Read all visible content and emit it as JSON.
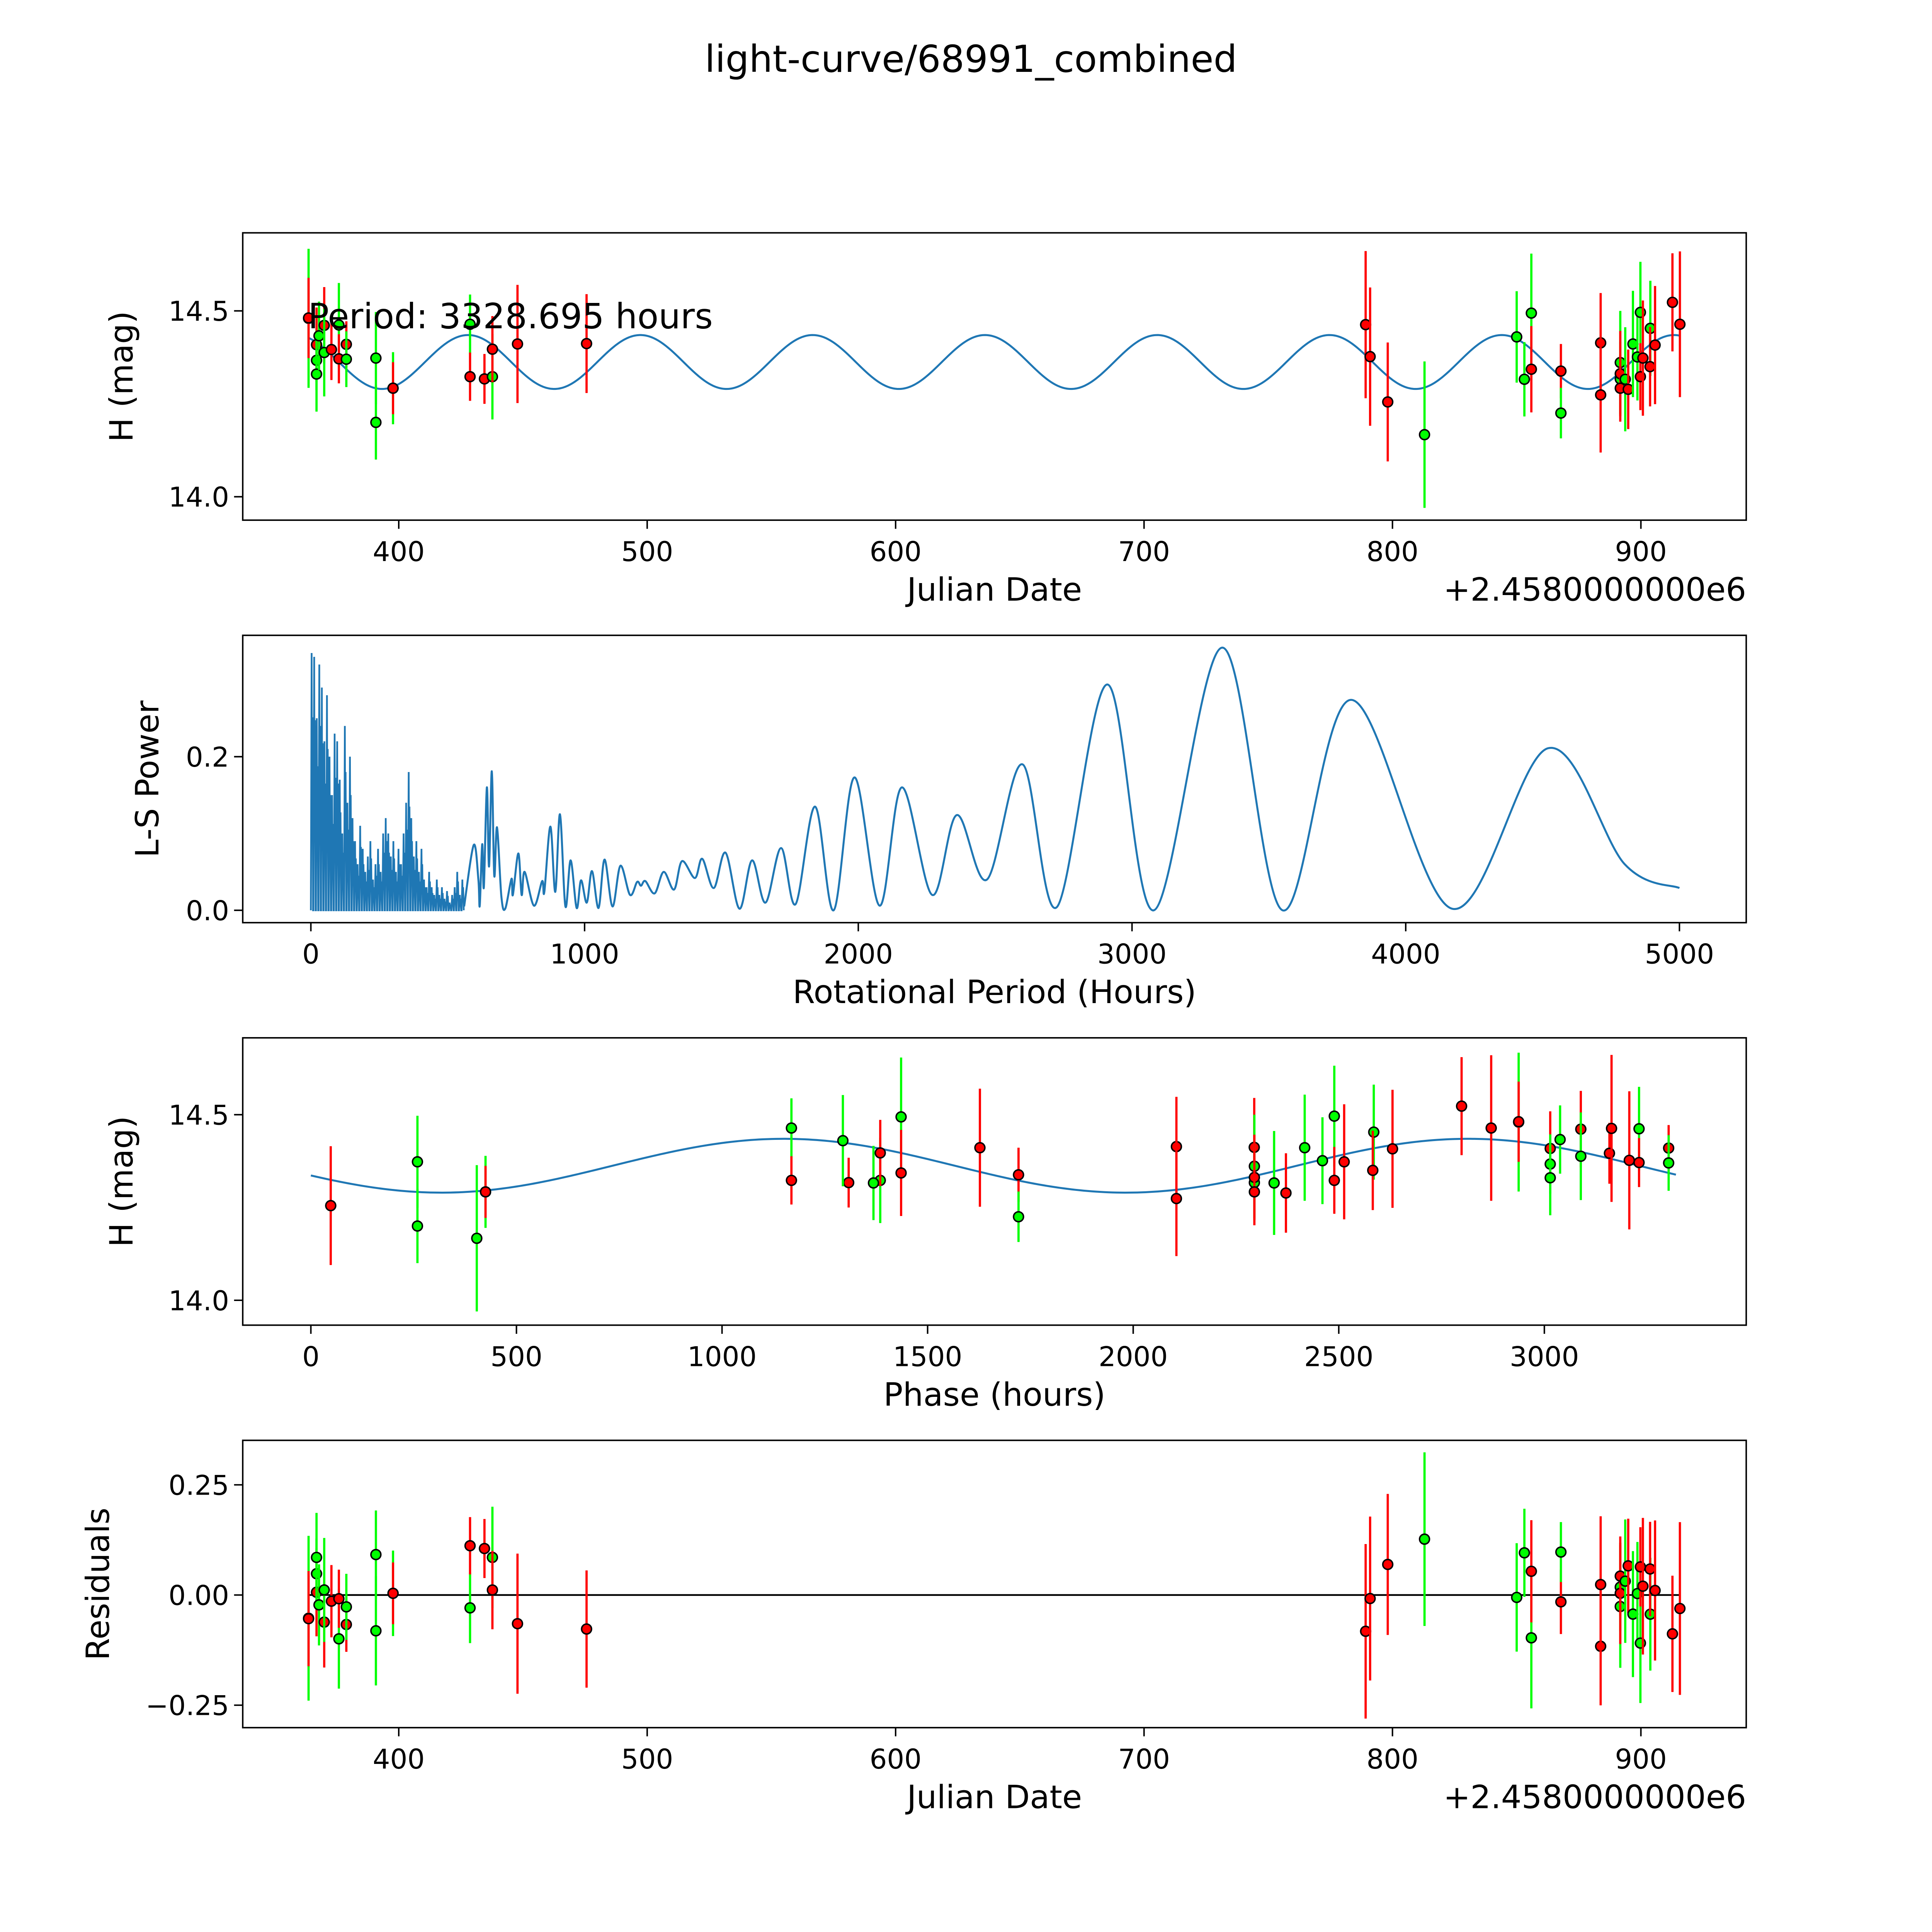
{
  "chart_data": {
    "type": "scatter",
    "title": "light-curve/68991_combined",
    "colors": {
      "red_band": "#ff0000",
      "green_band": "#00ff00",
      "model": "#1f77b4",
      "marker_edge": "#000000"
    },
    "model": {
      "mean_mag": 14.3625,
      "amplitude": 0.0725,
      "period_hours": 3328.695,
      "t0_jd_offset": 380,
      "peak_phase_hours": 1150,
      "harmonic": 2,
      "jd_range": [
        363.5,
        915.8
      ]
    },
    "observations": [
      {
        "jd": 363.7,
        "mag": 14.48,
        "err": 0.187,
        "band": "green"
      },
      {
        "jd": 363.7,
        "mag": 14.481,
        "err": 0.108,
        "band": "red"
      },
      {
        "jd": 366.9,
        "mag": 14.409,
        "err": 0.1,
        "band": "red"
      },
      {
        "jd": 366.9,
        "mag": 14.367,
        "err": 0.08,
        "band": "green"
      },
      {
        "jd": 366.9,
        "mag": 14.33,
        "err": 0.101,
        "band": "green"
      },
      {
        "jd": 367.9,
        "mag": 14.433,
        "err": 0.092,
        "band": "green"
      },
      {
        "jd": 370.0,
        "mag": 14.461,
        "err": 0.103,
        "band": "red"
      },
      {
        "jd": 370.0,
        "mag": 14.388,
        "err": 0.118,
        "band": "green"
      },
      {
        "jd": 372.9,
        "mag": 14.396,
        "err": 0.082,
        "band": "red"
      },
      {
        "jd": 375.9,
        "mag": 14.462,
        "err": 0.113,
        "band": "green"
      },
      {
        "jd": 375.9,
        "mag": 14.371,
        "err": 0.066,
        "band": "red"
      },
      {
        "jd": 378.9,
        "mag": 14.41,
        "err": 0.062,
        "band": "red"
      },
      {
        "jd": 378.9,
        "mag": 14.37,
        "err": 0.075,
        "band": "green"
      },
      {
        "jd": 390.8,
        "mag": 14.373,
        "err": 0.124,
        "band": "green"
      },
      {
        "jd": 390.8,
        "mag": 14.2,
        "err": 0.1,
        "band": "green"
      },
      {
        "jd": 397.7,
        "mag": 14.292,
        "err": 0.097,
        "band": "green"
      },
      {
        "jd": 397.7,
        "mag": 14.292,
        "err": 0.07,
        "band": "red"
      },
      {
        "jd": 428.7,
        "mag": 14.464,
        "err": 0.08,
        "band": "green"
      },
      {
        "jd": 428.7,
        "mag": 14.323,
        "err": 0.065,
        "band": "red"
      },
      {
        "jd": 434.5,
        "mag": 14.317,
        "err": 0.067,
        "band": "red"
      },
      {
        "jd": 437.7,
        "mag": 14.323,
        "err": 0.115,
        "band": "green"
      },
      {
        "jd": 437.7,
        "mag": 14.397,
        "err": 0.089,
        "band": "red"
      },
      {
        "jd": 447.8,
        "mag": 14.411,
        "err": 0.159,
        "band": "red"
      },
      {
        "jd": 475.6,
        "mag": 14.412,
        "err": 0.133,
        "band": "red"
      },
      {
        "jd": 789.2,
        "mag": 14.463,
        "err": 0.198,
        "band": "red"
      },
      {
        "jd": 791.0,
        "mag": 14.377,
        "err": 0.186,
        "band": "red"
      },
      {
        "jd": 798.1,
        "mag": 14.255,
        "err": 0.16,
        "band": "red"
      },
      {
        "jd": 812.9,
        "mag": 14.167,
        "err": 0.197,
        "band": "green"
      },
      {
        "jd": 850.0,
        "mag": 14.43,
        "err": 0.123,
        "band": "green"
      },
      {
        "jd": 853.1,
        "mag": 14.316,
        "err": 0.1,
        "band": "green"
      },
      {
        "jd": 855.9,
        "mag": 14.494,
        "err": 0.16,
        "band": "green"
      },
      {
        "jd": 855.9,
        "mag": 14.343,
        "err": 0.116,
        "band": "red"
      },
      {
        "jd": 867.8,
        "mag": 14.338,
        "err": 0.073,
        "band": "red"
      },
      {
        "jd": 867.8,
        "mag": 14.225,
        "err": 0.068,
        "band": "green"
      },
      {
        "jd": 883.8,
        "mag": 14.414,
        "err": 0.134,
        "band": "red"
      },
      {
        "jd": 883.8,
        "mag": 14.274,
        "err": 0.155,
        "band": "red"
      },
      {
        "jd": 891.7,
        "mag": 14.361,
        "err": 0.139,
        "band": "green"
      },
      {
        "jd": 891.7,
        "mag": 14.317,
        "err": 0.1,
        "band": "green"
      },
      {
        "jd": 891.7,
        "mag": 14.331,
        "err": 0.115,
        "band": "red"
      },
      {
        "jd": 891.7,
        "mag": 14.292,
        "err": 0.09,
        "band": "red"
      },
      {
        "jd": 893.7,
        "mag": 14.316,
        "err": 0.14,
        "band": "green"
      },
      {
        "jd": 894.9,
        "mag": 14.289,
        "err": 0.107,
        "band": "red"
      },
      {
        "jd": 896.8,
        "mag": 14.411,
        "err": 0.143,
        "band": "green"
      },
      {
        "jd": 898.6,
        "mag": 14.376,
        "err": 0.117,
        "band": "green"
      },
      {
        "jd": 899.8,
        "mag": 14.496,
        "err": 0.136,
        "band": "green"
      },
      {
        "jd": 899.8,
        "mag": 14.323,
        "err": 0.09,
        "band": "red"
      },
      {
        "jd": 900.8,
        "mag": 14.373,
        "err": 0.155,
        "band": "red"
      },
      {
        "jd": 903.8,
        "mag": 14.453,
        "err": 0.128,
        "band": "green"
      },
      {
        "jd": 903.7,
        "mag": 14.35,
        "err": 0.107,
        "band": "red"
      },
      {
        "jd": 905.7,
        "mag": 14.408,
        "err": 0.159,
        "band": "red"
      },
      {
        "jd": 912.7,
        "mag": 14.523,
        "err": 0.132,
        "band": "red"
      },
      {
        "jd": 915.7,
        "mag": 14.464,
        "err": 0.196,
        "band": "red"
      }
    ],
    "periodogram": {
      "noise_range": [
        0,
        560
      ],
      "noise_peaks": [
        0.335,
        0.33,
        0.25,
        0.32,
        0.29,
        0.22,
        0.28,
        0.2,
        0.15,
        0.23,
        0.22,
        0.17,
        0.1,
        0.24,
        0.14,
        0.2,
        0.12,
        0.09,
        0.06,
        0.11,
        0.08,
        0.05,
        0.07,
        0.09,
        0.04,
        0.06,
        0.08,
        0.05,
        0.1,
        0.12,
        0.1,
        0.07,
        0.09,
        0.05,
        0.08,
        0.06,
        0.1,
        0.14,
        0.18,
        0.12,
        0.07,
        0.09,
        0.05,
        0.08,
        0.04,
        0.03,
        0.05,
        0.03,
        0.02,
        0.04,
        0.02,
        0.03,
        0.015,
        0.025,
        0.01,
        0.02,
        0.03,
        0.05,
        0.02,
        0.04
      ],
      "smooth": [
        [
          560,
          0.005
        ],
        [
          595,
          0.085
        ],
        [
          612,
          0.04
        ],
        [
          617,
          0.006
        ],
        [
          626,
          0.086
        ],
        [
          632,
          0.03
        ],
        [
          643,
          0.16
        ],
        [
          651,
          0.057
        ],
        [
          661,
          0.181
        ],
        [
          670,
          0.045
        ],
        [
          680,
          0.108
        ],
        [
          696,
          0.018
        ],
        [
          710,
          0.002
        ],
        [
          733,
          0.041
        ],
        [
          738,
          0.02
        ],
        [
          758,
          0.074
        ],
        [
          770,
          0.02
        ],
        [
          781,
          0.05
        ],
        [
          815,
          0.006
        ],
        [
          845,
          0.038
        ],
        [
          853,
          0.024
        ],
        [
          875,
          0.109
        ],
        [
          893,
          0.024
        ],
        [
          910,
          0.125
        ],
        [
          930,
          0.005
        ],
        [
          949,
          0.065
        ],
        [
          971,
          0.003
        ],
        [
          987,
          0.039
        ],
        [
          1008,
          0.01
        ],
        [
          1027,
          0.051
        ],
        [
          1051,
          0.003
        ],
        [
          1073,
          0.066
        ],
        [
          1102,
          0.005
        ],
        [
          1131,
          0.058
        ],
        [
          1166,
          0.02
        ],
        [
          1192,
          0.037
        ],
        [
          1206,
          0.032
        ],
        [
          1222,
          0.038
        ],
        [
          1256,
          0.022
        ],
        [
          1289,
          0.05
        ],
        [
          1327,
          0.027
        ],
        [
          1356,
          0.064
        ],
        [
          1403,
          0.042
        ],
        [
          1430,
          0.067
        ],
        [
          1472,
          0.029
        ],
        [
          1515,
          0.075
        ],
        [
          1566,
          0.002
        ],
        [
          1612,
          0.065
        ],
        [
          1661,
          0.01
        ],
        [
          1718,
          0.081
        ],
        [
          1771,
          0.008
        ],
        [
          1842,
          0.135
        ],
        [
          1910,
          0.0
        ],
        [
          1986,
          0.173
        ],
        [
          2078,
          0.006
        ],
        [
          2159,
          0.16
        ],
        [
          2270,
          0.02
        ],
        [
          2360,
          0.124
        ],
        [
          2470,
          0.04
        ],
        [
          2600,
          0.19
        ],
        [
          2725,
          0.004
        ],
        [
          2910,
          0.294
        ],
        [
          3080,
          0.0
        ],
        [
          3330,
          0.342
        ],
        [
          3550,
          0.0
        ],
        [
          3800,
          0.274
        ],
        [
          4170,
          0.002
        ],
        [
          4520,
          0.211
        ],
        [
          4800,
          0.06
        ],
        [
          5000,
          0.029
        ]
      ]
    },
    "panels": [
      {
        "id": "light_curve",
        "xlabel": "Julian Date",
        "ylabel": "H (mag)",
        "offset_label": "+2.4580000000e6",
        "annotation": "Period: 3328.695 hours",
        "xlim": [
          337.2,
          942.4
        ],
        "ylim": [
          13.937,
          14.71
        ],
        "xticks": [
          {
            "v": 400,
            "label": "400"
          },
          {
            "v": 500,
            "label": "500"
          },
          {
            "v": 600,
            "label": "600"
          },
          {
            "v": 700,
            "label": "700"
          },
          {
            "v": 800,
            "label": "800"
          },
          {
            "v": 900,
            "label": "900"
          }
        ],
        "yticks": [
          {
            "v": 14.0,
            "label": "14.0"
          },
          {
            "v": 14.5,
            "label": "14.5"
          }
        ]
      },
      {
        "id": "periodogram",
        "type": "line",
        "xlabel": "Rotational Period (Hours)",
        "ylabel": "L-S Power",
        "xlim": [
          -248.9,
          5244
        ],
        "ylim": [
          -0.0161,
          0.358
        ],
        "xticks": [
          {
            "v": 0,
            "label": "0"
          },
          {
            "v": 1000,
            "label": "1000"
          },
          {
            "v": 2000,
            "label": "2000"
          },
          {
            "v": 3000,
            "label": "3000"
          },
          {
            "v": 4000,
            "label": "4000"
          },
          {
            "v": 5000,
            "label": "5000"
          }
        ],
        "yticks": [
          {
            "v": 0.0,
            "label": "0.0"
          },
          {
            "v": 0.2,
            "label": "0.2"
          }
        ]
      },
      {
        "id": "phase",
        "xlabel": "Phase (hours)",
        "ylabel": "H (mag)",
        "xlim": [
          -165.7,
          3491
        ],
        "ylim": [
          13.933,
          14.707
        ],
        "xticks": [
          {
            "v": 0,
            "label": "0"
          },
          {
            "v": 500,
            "label": "500"
          },
          {
            "v": 1000,
            "label": "1000"
          },
          {
            "v": 1500,
            "label": "1500"
          },
          {
            "v": 2000,
            "label": "2000"
          },
          {
            "v": 2500,
            "label": "2500"
          },
          {
            "v": 3000,
            "label": "3000"
          }
        ],
        "yticks": [
          {
            "v": 14.0,
            "label": "14.0"
          },
          {
            "v": 14.5,
            "label": "14.5"
          }
        ]
      },
      {
        "id": "residuals",
        "xlabel": "Julian Date",
        "ylabel": "Residuals",
        "offset_label": "+2.4580000000e6",
        "xlim": [
          337.2,
          942.4
        ],
        "ylim": [
          -0.301,
          0.351
        ],
        "xticks": [
          {
            "v": 400,
            "label": "400"
          },
          {
            "v": 500,
            "label": "500"
          },
          {
            "v": 600,
            "label": "600"
          },
          {
            "v": 700,
            "label": "700"
          },
          {
            "v": 800,
            "label": "800"
          },
          {
            "v": 900,
            "label": "900"
          }
        ],
        "yticks": [
          {
            "v": -0.25,
            "label": "−0.25"
          },
          {
            "v": 0.0,
            "label": "0.00"
          },
          {
            "v": 0.25,
            "label": "0.25"
          }
        ]
      }
    ]
  }
}
